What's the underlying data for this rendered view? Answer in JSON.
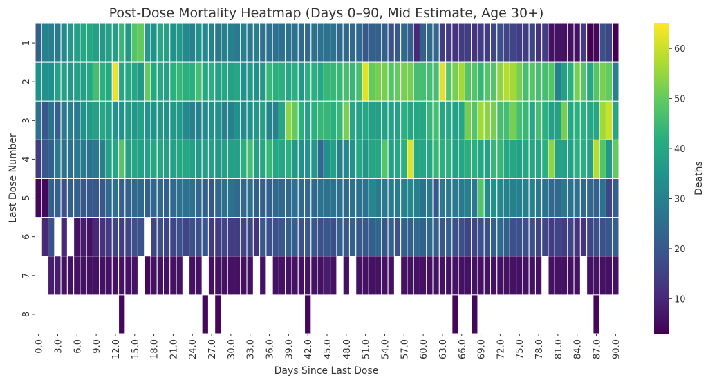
{
  "chart_data": {
    "type": "heatmap",
    "title": "Post-Dose Mortality Heatmap (Days 0–90, Mid Estimate, Age 30+)",
    "xlabel": "Days Since Last Dose",
    "ylabel": "Last Dose Number",
    "colorbar_label": "Deaths",
    "colormap": "viridis",
    "vmin": 3,
    "vmax": 65,
    "x": [
      "0.0",
      "1.0",
      "2.0",
      "3.0",
      "4.0",
      "5.0",
      "6.0",
      "7.0",
      "8.0",
      "9.0",
      "10.0",
      "11.0",
      "12.0",
      "13.0",
      "14.0",
      "15.0",
      "16.0",
      "17.0",
      "18.0",
      "19.0",
      "20.0",
      "21.0",
      "22.0",
      "23.0",
      "24.0",
      "25.0",
      "26.0",
      "27.0",
      "28.0",
      "29.0",
      "30.0",
      "31.0",
      "32.0",
      "33.0",
      "34.0",
      "35.0",
      "36.0",
      "37.0",
      "38.0",
      "39.0",
      "40.0",
      "41.0",
      "42.0",
      "43.0",
      "44.0",
      "45.0",
      "46.0",
      "47.0",
      "48.0",
      "49.0",
      "50.0",
      "51.0",
      "52.0",
      "53.0",
      "54.0",
      "55.0",
      "56.0",
      "57.0",
      "58.0",
      "59.0",
      "60.0",
      "61.0",
      "62.0",
      "63.0",
      "64.0",
      "65.0",
      "66.0",
      "67.0",
      "68.0",
      "69.0",
      "70.0",
      "71.0",
      "72.0",
      "73.0",
      "74.0",
      "75.0",
      "76.0",
      "77.0",
      "78.0",
      "79.0",
      "80.0",
      "81.0",
      "82.0",
      "83.0",
      "84.0",
      "85.0",
      "86.0",
      "87.0",
      "88.0",
      "89.0",
      "90.0"
    ],
    "x_tick_labels": [
      "0.0",
      "3.0",
      "6.0",
      "9.0",
      "12.0",
      "15.0",
      "18.0",
      "21.0",
      "24.0",
      "27.0",
      "30.0",
      "33.0",
      "36.0",
      "39.0",
      "42.0",
      "45.0",
      "48.0",
      "51.0",
      "54.0",
      "57.0",
      "60.0",
      "63.0",
      "66.0",
      "69.0",
      "72.0",
      "75.0",
      "78.0",
      "81.0",
      "84.0",
      "87.0",
      "90.0"
    ],
    "y": [
      "1",
      "2",
      "3",
      "4",
      "5",
      "6",
      "7",
      "8"
    ],
    "colorbar_ticks": [
      10,
      20,
      30,
      40,
      50,
      60
    ],
    "values": [
      [
        22,
        30,
        30,
        28,
        32,
        36,
        38,
        40,
        40,
        38,
        36,
        38,
        38,
        44,
        36,
        48,
        50,
        36,
        34,
        40,
        38,
        34,
        36,
        32,
        30,
        34,
        32,
        30,
        28,
        30,
        30,
        28,
        30,
        28,
        30,
        26,
        26,
        26,
        26,
        26,
        26,
        24,
        24,
        26,
        26,
        26,
        26,
        24,
        24,
        24,
        24,
        20,
        22,
        22,
        22,
        18,
        20,
        24,
        22,
        10,
        22,
        24,
        24,
        14,
        14,
        12,
        14,
        14,
        12,
        14,
        14,
        16,
        18,
        16,
        16,
        14,
        14,
        16,
        12,
        14,
        6,
        6,
        6,
        6,
        6,
        14,
        3,
        4,
        18,
        16,
        3
      ],
      [
        34,
        34,
        34,
        38,
        38,
        36,
        38,
        38,
        40,
        46,
        42,
        40,
        63,
        40,
        40,
        40,
        36,
        50,
        40,
        40,
        38,
        42,
        44,
        42,
        42,
        46,
        40,
        42,
        38,
        40,
        38,
        40,
        34,
        36,
        34,
        36,
        44,
        42,
        42,
        40,
        42,
        36,
        42,
        42,
        40,
        44,
        44,
        44,
        46,
        44,
        46,
        62,
        50,
        52,
        52,
        48,
        50,
        52,
        52,
        46,
        46,
        46,
        46,
        62,
        48,
        52,
        56,
        48,
        48,
        44,
        48,
        48,
        54,
        58,
        56,
        52,
        46,
        48,
        46,
        46,
        48,
        30,
        38,
        42,
        52,
        48,
        40,
        48,
        52,
        50,
        30
      ],
      [
        26,
        20,
        26,
        22,
        28,
        30,
        28,
        34,
        36,
        38,
        40,
        38,
        34,
        34,
        36,
        36,
        38,
        34,
        34,
        36,
        34,
        36,
        36,
        32,
        30,
        30,
        32,
        34,
        34,
        30,
        30,
        34,
        32,
        34,
        36,
        38,
        30,
        30,
        40,
        54,
        50,
        42,
        38,
        42,
        44,
        44,
        42,
        44,
        52,
        40,
        38,
        40,
        38,
        38,
        38,
        38,
        38,
        42,
        40,
        40,
        40,
        44,
        46,
        40,
        40,
        38,
        40,
        52,
        48,
        56,
        54,
        52,
        46,
        46,
        52,
        46,
        44,
        40,
        46,
        42,
        38,
        38,
        52,
        40,
        42,
        42,
        40,
        40,
        56,
        60,
        40
      ],
      [
        14,
        20,
        22,
        28,
        26,
        26,
        28,
        28,
        26,
        28,
        30,
        38,
        40,
        48,
        38,
        40,
        38,
        38,
        40,
        40,
        38,
        38,
        40,
        40,
        38,
        36,
        38,
        38,
        36,
        38,
        38,
        38,
        42,
        46,
        38,
        40,
        44,
        40,
        40,
        42,
        36,
        34,
        34,
        36,
        24,
        34,
        38,
        30,
        32,
        34,
        40,
        36,
        40,
        40,
        48,
        38,
        40,
        42,
        62,
        40,
        40,
        40,
        44,
        42,
        42,
        38,
        40,
        42,
        42,
        40,
        38,
        44,
        44,
        40,
        40,
        38,
        40,
        40,
        40,
        42,
        54,
        38,
        38,
        38,
        42,
        42,
        38,
        58,
        48,
        36,
        50
      ],
      [
        4,
        4,
        22,
        22,
        18,
        22,
        22,
        20,
        20,
        20,
        20,
        24,
        26,
        22,
        22,
        24,
        24,
        22,
        24,
        24,
        22,
        24,
        26,
        26,
        26,
        24,
        22,
        20,
        24,
        26,
        26,
        24,
        24,
        26,
        22,
        22,
        22,
        24,
        24,
        24,
        26,
        24,
        24,
        24,
        26,
        26,
        26,
        26,
        24,
        26,
        26,
        26,
        32,
        28,
        28,
        28,
        28,
        30,
        32,
        30,
        26,
        28,
        20,
        28,
        28,
        28,
        28,
        30,
        28,
        48,
        32,
        34,
        32,
        30,
        30,
        30,
        30,
        30,
        28,
        26,
        24,
        24,
        28,
        26,
        26,
        24,
        24,
        22,
        26,
        16,
        22
      ],
      [
        null,
        10,
        18,
        null,
        10,
        null,
        6,
        8,
        6,
        10,
        12,
        14,
        16,
        14,
        16,
        18,
        18,
        null,
        16,
        18,
        16,
        16,
        18,
        16,
        18,
        18,
        20,
        14,
        14,
        16,
        14,
        14,
        16,
        16,
        12,
        20,
        18,
        18,
        20,
        22,
        22,
        18,
        20,
        20,
        18,
        20,
        18,
        22,
        20,
        22,
        20,
        20,
        22,
        24,
        20,
        22,
        18,
        22,
        22,
        24,
        22,
        24,
        22,
        20,
        22,
        18,
        18,
        16,
        16,
        18,
        18,
        22,
        24,
        22,
        18,
        18,
        18,
        18,
        16,
        16,
        14,
        16,
        14,
        16,
        12,
        12,
        16,
        18,
        18,
        20,
        22
      ],
      [
        null,
        null,
        8,
        8,
        6,
        6,
        6,
        6,
        6,
        6,
        6,
        6,
        6,
        6,
        6,
        6,
        null,
        4,
        6,
        6,
        6,
        6,
        6,
        null,
        6,
        6,
        null,
        6,
        6,
        6,
        6,
        6,
        6,
        6,
        null,
        6,
        null,
        6,
        6,
        6,
        6,
        6,
        6,
        6,
        6,
        8,
        6,
        null,
        6,
        null,
        6,
        6,
        6,
        6,
        6,
        6,
        null,
        6,
        6,
        6,
        6,
        6,
        6,
        6,
        6,
        6,
        6,
        6,
        6,
        6,
        6,
        6,
        6,
        6,
        6,
        6,
        6,
        6,
        6,
        null,
        6,
        6,
        6,
        6,
        6,
        null,
        6,
        6,
        6,
        6,
        6
      ],
      [
        null,
        null,
        null,
        null,
        null,
        null,
        null,
        null,
        null,
        null,
        null,
        null,
        null,
        4,
        null,
        null,
        null,
        null,
        null,
        null,
        null,
        null,
        null,
        null,
        null,
        null,
        4,
        null,
        4,
        null,
        null,
        null,
        null,
        null,
        null,
        null,
        null,
        null,
        null,
        null,
        null,
        null,
        4,
        null,
        null,
        null,
        null,
        null,
        null,
        null,
        null,
        null,
        null,
        null,
        null,
        null,
        null,
        null,
        null,
        null,
        null,
        null,
        null,
        null,
        null,
        4,
        null,
        null,
        4,
        null,
        null,
        null,
        null,
        null,
        null,
        null,
        null,
        null,
        null,
        null,
        null,
        null,
        null,
        null,
        null,
        null,
        null,
        4,
        null,
        null,
        null
      ]
    ]
  }
}
